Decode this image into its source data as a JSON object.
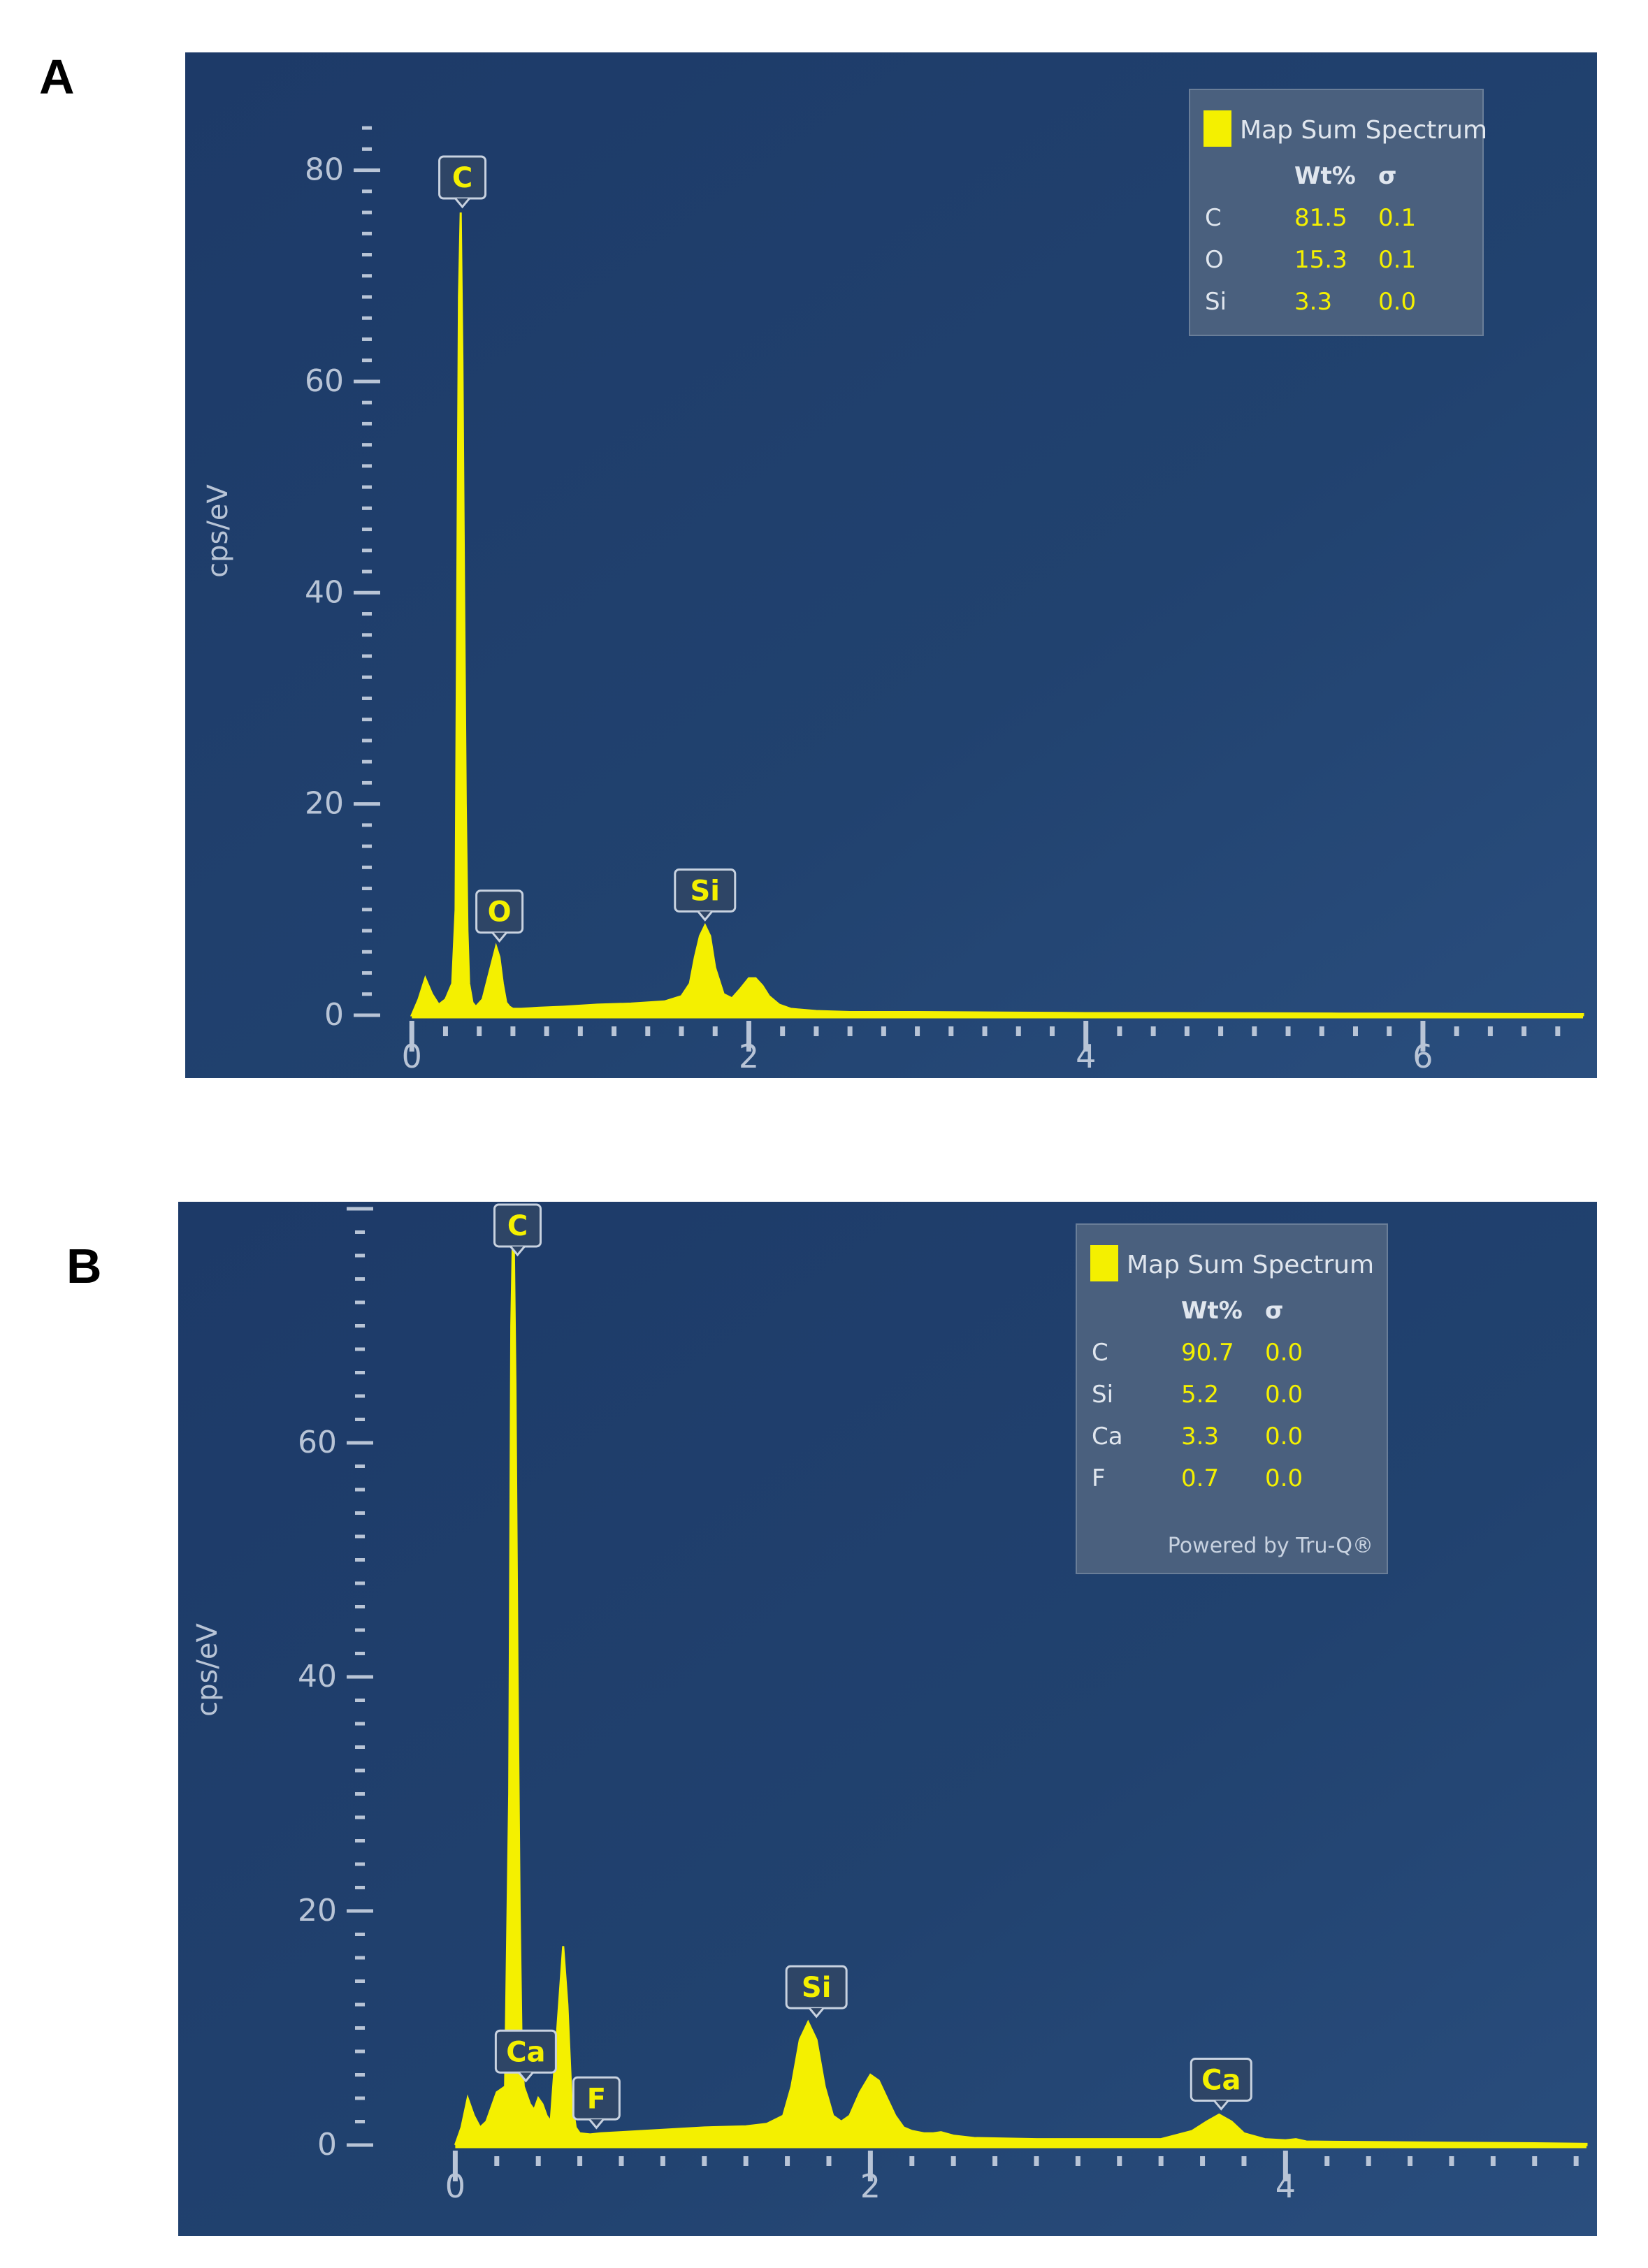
{
  "chart_data": [
    {
      "panel": "A",
      "type": "area",
      "ylabel": "cps/eV",
      "xlabel": "",
      "xlim": [
        -0.03,
        6.95
      ],
      "ylim": [
        0,
        85
      ],
      "xticks": [
        "0",
        "2",
        "4",
        "6"
      ],
      "yticks": [
        "0",
        "20",
        "40",
        "60",
        "80"
      ],
      "series": [
        {
          "color": "#f4f000",
          "x": [
            0,
            0.04,
            0.08,
            0.12,
            0.16,
            0.2,
            0.24,
            0.26,
            0.27,
            0.28,
            0.29,
            0.3,
            0.31,
            0.32,
            0.33,
            0.34,
            0.36,
            0.38,
            0.42,
            0.46,
            0.5,
            0.52,
            0.54,
            0.56,
            0.58,
            0.6,
            0.65,
            0.75,
            0.9,
            1.1,
            1.3,
            1.5,
            1.6,
            1.65,
            1.68,
            1.71,
            1.74,
            1.77,
            1.8,
            1.85,
            1.9,
            1.95,
            2.0,
            2.04,
            2.08,
            2.12,
            2.18,
            2.25,
            2.4,
            2.6,
            3.0,
            3.5,
            4.0,
            4.5,
            5.0,
            5.5,
            6.0,
            6.5,
            6.95
          ],
          "y": [
            0,
            1.5,
            3.5,
            2.0,
            1.0,
            1.5,
            3,
            10,
            40,
            68,
            76,
            62,
            40,
            20,
            8,
            3,
            1.2,
            0.8,
            1.5,
            4,
            6.5,
            5.5,
            3,
            1.2,
            0.8,
            0.6,
            0.6,
            0.7,
            0.8,
            1.0,
            1.1,
            1.3,
            1.8,
            3,
            5.5,
            7.5,
            8.5,
            7.5,
            4.5,
            2,
            1.6,
            2.5,
            3.5,
            3.5,
            2.8,
            1.8,
            1.0,
            0.6,
            0.4,
            0.3,
            0.3,
            0.25,
            0.2,
            0.2,
            0.18,
            0.15,
            0.15,
            0.12,
            0.1
          ]
        }
      ],
      "peak_labels": [
        {
          "label": "C",
          "x": 0.3,
          "y": 76
        },
        {
          "label": "O",
          "x": 0.52,
          "y": 6.5
        },
        {
          "label": "Si",
          "x": 1.74,
          "y": 8.5
        }
      ],
      "legend": {
        "series_name": "Map Sum Spectrum",
        "columns": [
          "Wt%",
          "σ"
        ],
        "rows": [
          {
            "element": "C",
            "wt": "81.5",
            "sigma": "0.1"
          },
          {
            "element": "O",
            "wt": "15.3",
            "sigma": "0.1"
          },
          {
            "element": "Si",
            "wt": "3.3",
            "sigma": "0.0"
          }
        ],
        "footer": "",
        "placement": "top-right"
      },
      "grid": false
    },
    {
      "panel": "B",
      "type": "area",
      "ylabel": "cps/eV",
      "xlabel": "",
      "xlim": [
        -0.2,
        5.45
      ],
      "ylim": [
        0,
        80
      ],
      "xticks": [
        "0",
        "2",
        "4"
      ],
      "yticks": [
        "0",
        "20",
        "40",
        "60"
      ],
      "series": [
        {
          "color": "#f4f000",
          "x": [
            0,
            0.03,
            0.06,
            0.09,
            0.12,
            0.15,
            0.2,
            0.24,
            0.26,
            0.27,
            0.28,
            0.29,
            0.3,
            0.31,
            0.32,
            0.33,
            0.34,
            0.36,
            0.38,
            0.4,
            0.42,
            0.44,
            0.46,
            0.5,
            0.52,
            0.54,
            0.56,
            0.58,
            0.6,
            0.65,
            0.7,
            0.8,
            1.0,
            1.2,
            1.4,
            1.5,
            1.58,
            1.62,
            1.66,
            1.7,
            1.74,
            1.78,
            1.82,
            1.86,
            1.9,
            1.95,
            2.0,
            2.04,
            2.08,
            2.12,
            2.16,
            2.2,
            2.26,
            2.3,
            2.34,
            2.4,
            2.5,
            2.8,
            3.1,
            3.4,
            3.55,
            3.62,
            3.68,
            3.74,
            3.8,
            3.9,
            4.0,
            4.05,
            4.1,
            4.4,
            4.8,
            5.2,
            5.45
          ],
          "y": [
            0,
            1.5,
            4,
            2.5,
            1.5,
            2,
            4.5,
            5,
            30,
            70,
            80,
            65,
            40,
            20,
            8,
            5,
            4.5,
            3.5,
            3,
            4,
            3.5,
            2.5,
            2,
            12,
            17,
            12,
            4,
            1.5,
            1,
            0.9,
            1.0,
            1.1,
            1.3,
            1.5,
            1.6,
            1.8,
            2.5,
            5,
            9,
            10.5,
            9,
            5,
            2.5,
            2,
            2.5,
            4.5,
            6,
            5.5,
            4,
            2.5,
            1.5,
            1.2,
            1.0,
            1.0,
            1.1,
            0.8,
            0.6,
            0.5,
            0.5,
            0.5,
            1.2,
            2.0,
            2.6,
            2.0,
            1.0,
            0.5,
            0.4,
            0.5,
            0.3,
            0.25,
            0.2,
            0.15,
            0.1
          ]
        }
      ],
      "peak_labels": [
        {
          "label": "C",
          "x": 0.3,
          "y": 80
        },
        {
          "label": "Ca",
          "x": 0.34,
          "y": 5
        },
        {
          "label": "F",
          "x": 0.68,
          "y": 1
        },
        {
          "label": "Si",
          "x": 1.74,
          "y": 10.5
        },
        {
          "label": "Ca",
          "x": 3.69,
          "y": 2.6
        }
      ],
      "legend": {
        "series_name": "Map Sum Spectrum",
        "columns": [
          "Wt%",
          "σ"
        ],
        "rows": [
          {
            "element": "C",
            "wt": "90.7",
            "sigma": "0.0"
          },
          {
            "element": "Si",
            "wt": "5.2",
            "sigma": "0.0"
          },
          {
            "element": "Ca",
            "wt": "3.3",
            "sigma": "0.0"
          },
          {
            "element": "F",
            "wt": "0.7",
            "sigma": "0.0"
          }
        ],
        "footer": "Powered by Tru-Q®",
        "placement": "top-right"
      },
      "grid": false
    }
  ]
}
